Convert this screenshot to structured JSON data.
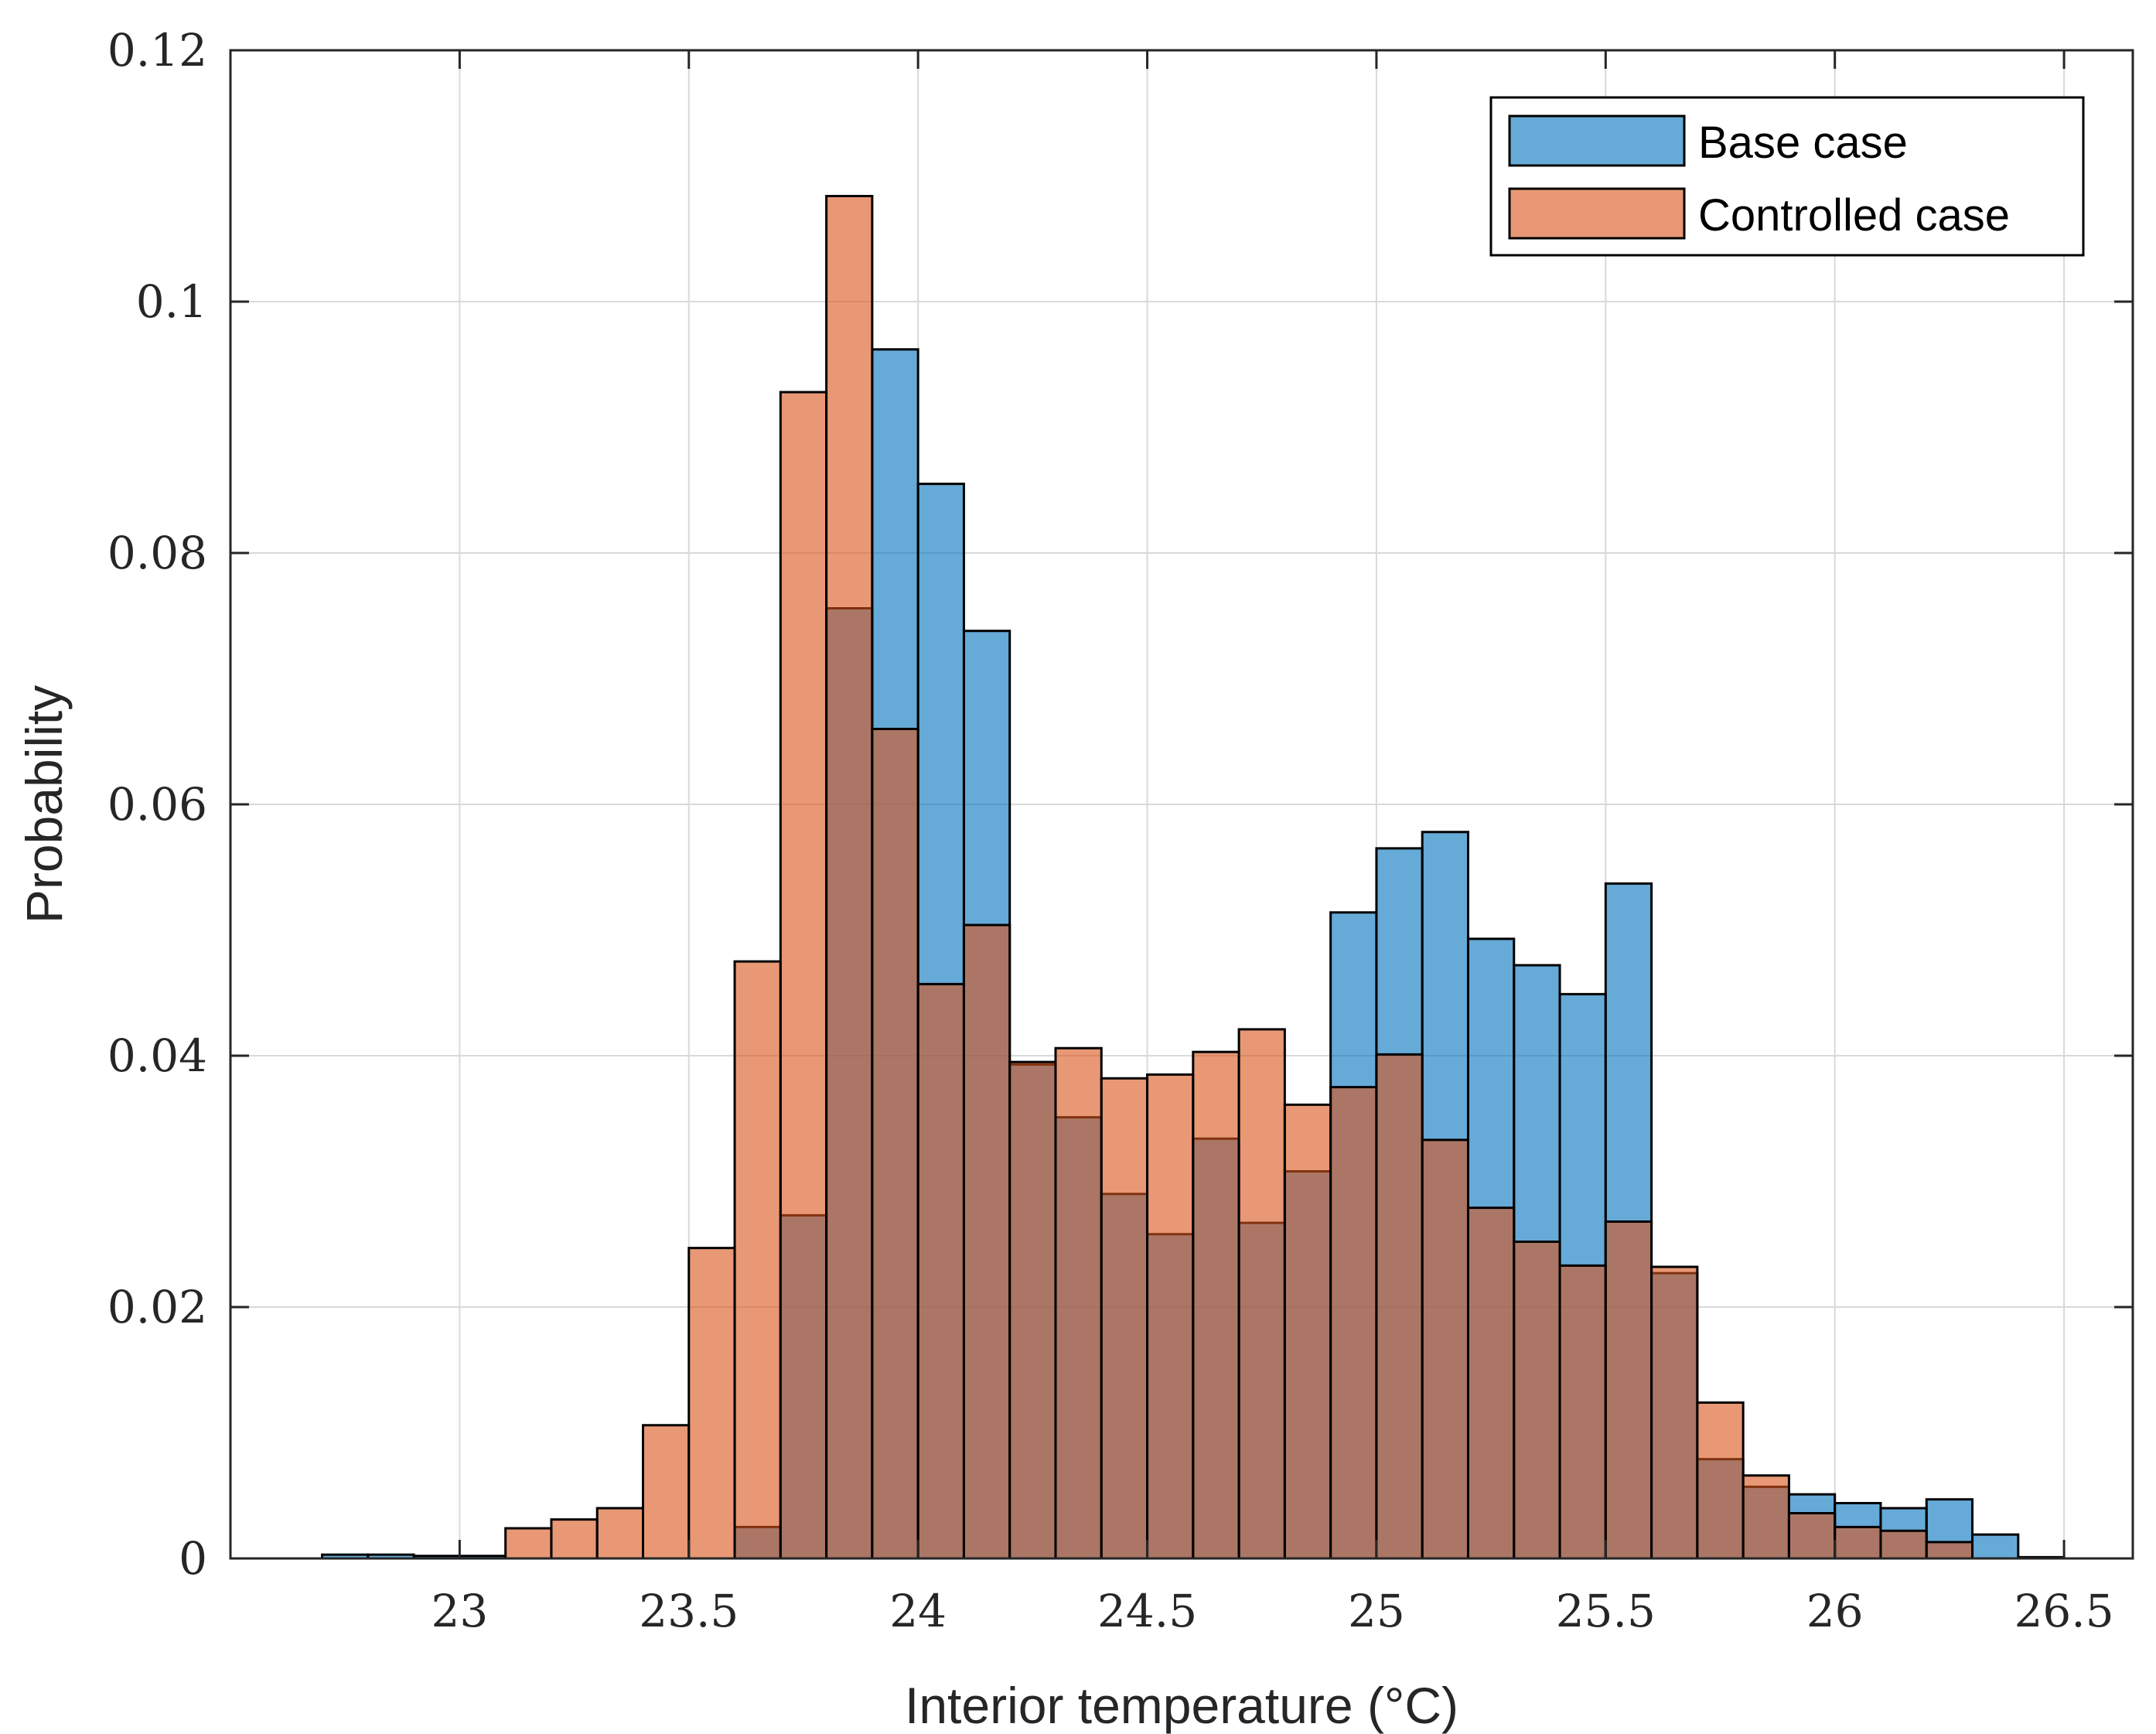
{
  "colors": {
    "base": "#0072BD",
    "controlled": "#D95319",
    "axis": "#262626",
    "grid": "#d9d9d9",
    "bar_edge": "#000000"
  },
  "chart_data": {
    "type": "bar",
    "title": "",
    "xlabel": "Interior temperature (°C)",
    "ylabel": "Probability",
    "xlim": [
      22.5,
      26.65
    ],
    "ylim": [
      0,
      0.12
    ],
    "bin_width": 0.1,
    "bin_starts": [
      22.7,
      22.8,
      22.9,
      23.0,
      23.1,
      23.2,
      23.3,
      23.4,
      23.5,
      23.6,
      23.7,
      23.8,
      23.9,
      24.0,
      24.1,
      24.2,
      24.3,
      24.4,
      24.5,
      24.6,
      24.7,
      24.8,
      24.9,
      25.0,
      25.1,
      25.2,
      25.3,
      25.4,
      25.5,
      25.6,
      25.7,
      25.8,
      25.9,
      26.0,
      26.1,
      26.2,
      26.3,
      26.4
    ],
    "x_ticks": [
      {
        "value": 23.0,
        "label": "23"
      },
      {
        "value": 23.5,
        "label": "23.5"
      },
      {
        "value": 24.0,
        "label": "24"
      },
      {
        "value": 24.5,
        "label": "24.5"
      },
      {
        "value": 25.0,
        "label": "25"
      },
      {
        "value": 25.5,
        "label": "25.5"
      },
      {
        "value": 26.0,
        "label": "26"
      },
      {
        "value": 26.5,
        "label": "26.5"
      }
    ],
    "y_ticks": [
      {
        "value": 0,
        "label": "0"
      },
      {
        "value": 0.02,
        "label": "0.02"
      },
      {
        "value": 0.04,
        "label": "0.04"
      },
      {
        "value": 0.06,
        "label": "0.06"
      },
      {
        "value": 0.08,
        "label": "0.08"
      },
      {
        "value": 0.1,
        "label": "0.1"
      },
      {
        "value": 0.12,
        "label": "0.12"
      }
    ],
    "grid": true,
    "legend_position": "top-right",
    "series": [
      {
        "name": "Base case",
        "values": [
          0.0003,
          0.0003,
          0.0002,
          0.0002,
          0,
          0,
          0,
          0,
          0,
          0.0025,
          0.0273,
          0.0756,
          0.0962,
          0.0855,
          0.0738,
          0.0393,
          0.0351,
          0.029,
          0.0258,
          0.0334,
          0.0267,
          0.0308,
          0.0514,
          0.0565,
          0.0578,
          0.0493,
          0.0472,
          0.0449,
          0.0537,
          0.0227,
          0.0079,
          0.0057,
          0.0051,
          0.0044,
          0.004,
          0.0047,
          0.0019,
          0.0001
        ]
      },
      {
        "name": "Controlled case",
        "values": [
          0,
          0,
          0,
          0,
          0.0024,
          0.0031,
          0.004,
          0.0106,
          0.0247,
          0.0475,
          0.0928,
          0.1084,
          0.066,
          0.0457,
          0.0504,
          0.0395,
          0.0406,
          0.0382,
          0.0385,
          0.0403,
          0.0421,
          0.0361,
          0.0375,
          0.0401,
          0.0333,
          0.0279,
          0.0252,
          0.0233,
          0.0268,
          0.0232,
          0.0124,
          0.0066,
          0.0036,
          0.0025,
          0.0022,
          0.0013,
          0,
          0
        ]
      }
    ]
  }
}
